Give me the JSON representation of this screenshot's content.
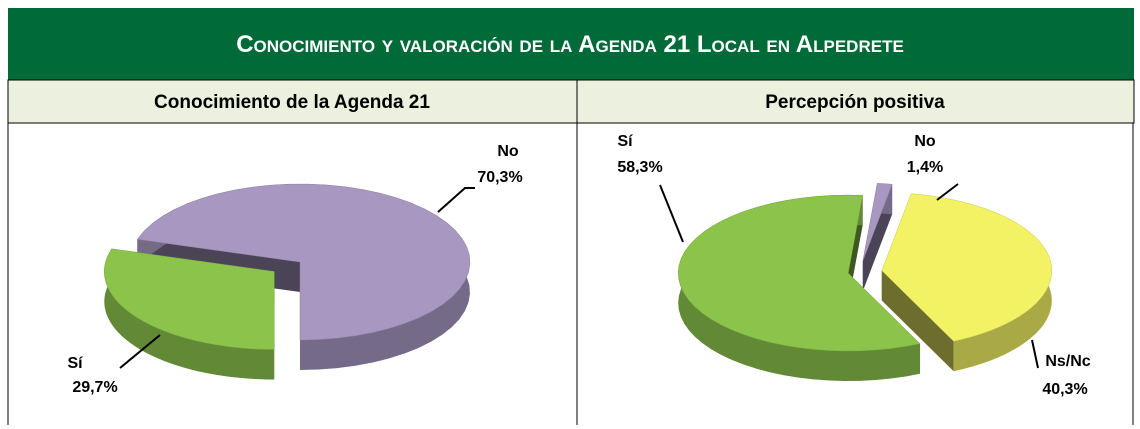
{
  "title": "Conocimiento y valoración de la Agenda 21 Local en Alpedrete",
  "chart_data": [
    {
      "type": "pie",
      "title": "Conocimiento de la Agenda 21",
      "categories": [
        "Sí",
        "No"
      ],
      "values": [
        29.7,
        70.3
      ],
      "value_labels": [
        "29,7%",
        "70,3%"
      ],
      "colors": [
        "#8cc34b",
        "#a797c1"
      ]
    },
    {
      "type": "pie",
      "title": "Percepción positiva",
      "categories": [
        "Sí",
        "No",
        "Ns/Nc"
      ],
      "values": [
        58.3,
        1.4,
        40.3
      ],
      "value_labels": [
        "58,3%",
        "1,4%",
        "40,3%"
      ],
      "colors": [
        "#8cc34b",
        "#a797c1",
        "#f2f264"
      ]
    }
  ]
}
